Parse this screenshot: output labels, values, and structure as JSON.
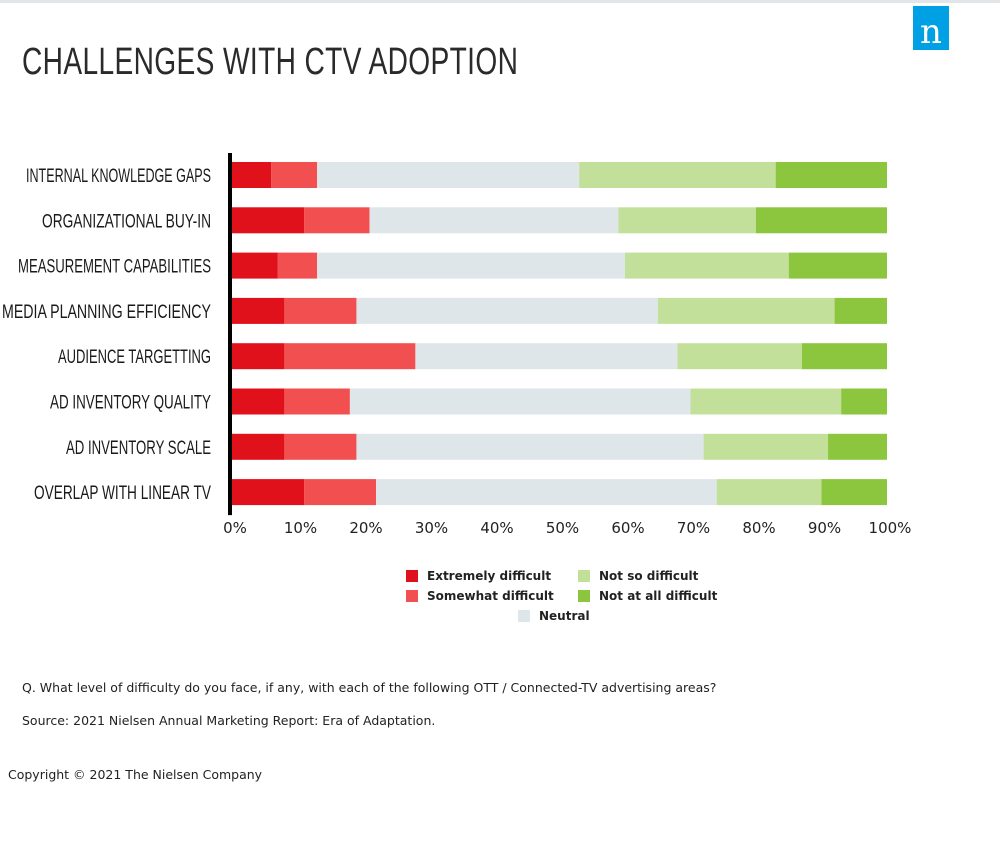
{
  "header": {
    "title": "CHALLENGES WITH CTV ADOPTION",
    "logo_letter": "n"
  },
  "colors": {
    "extremely": "#e0111b",
    "somewhat": "#f25050",
    "neutral": "#dfe6ea",
    "not_so": "#c3e09b",
    "not_at_all": "#8cc63f",
    "axis": "#000000"
  },
  "chart_data": {
    "type": "bar",
    "orientation": "horizontal",
    "stacked": true,
    "title": "CHALLENGES WITH CTV ADOPTION",
    "categories": [
      "INTERNAL KNOWLEDGE GAPS",
      "ORGANIZATIONAL BUY-IN",
      "MEASUREMENT CAPABILITIES",
      "MEDIA PLANNING  EFFICIENCY",
      "AUDIENCE TARGETTING",
      "AD INVENTORY QUALITY",
      "AD INVENTORY SCALE",
      "OVERLAP WITH LINEAR TV"
    ],
    "series": [
      {
        "name": "Extremely difficult",
        "color": "#e0111b",
        "values": [
          6,
          11,
          7,
          8,
          8,
          8,
          8,
          11
        ]
      },
      {
        "name": "Somewhat difficult",
        "color": "#f25050",
        "values": [
          7,
          10,
          6,
          11,
          20,
          10,
          11,
          11
        ]
      },
      {
        "name": "Neutral",
        "color": "#dfe6ea",
        "values": [
          40,
          38,
          47,
          46,
          40,
          52,
          53,
          52
        ]
      },
      {
        "name": "Not so difficult",
        "color": "#c3e09b",
        "values": [
          30,
          21,
          25,
          27,
          19,
          23,
          19,
          16
        ]
      },
      {
        "name": "Not at all difficult",
        "color": "#8cc63f",
        "values": [
          17,
          20,
          15,
          8,
          13,
          7,
          9,
          10
        ]
      }
    ],
    "x_ticks": [
      "0%",
      "10%",
      "20%",
      "30%",
      "40%",
      "50%",
      "60%",
      "70%",
      "80%",
      "90%",
      "100%"
    ],
    "xlim": [
      0,
      100
    ],
    "grid": false,
    "legend_position": "bottom"
  },
  "legend": {
    "items": [
      {
        "label": "Extremely difficult"
      },
      {
        "label": "Somewhat difficult"
      },
      {
        "label": "Not so difficult"
      },
      {
        "label": "Not at all difficult"
      },
      {
        "label": "Neutral"
      }
    ]
  },
  "notes": {
    "question": "Q. What level of difficulty do you face, if any, with each of the following OTT / Connected-TV advertising areas?",
    "source": "Source: 2021 Nielsen Annual Marketing Report: Era of Adaptation."
  },
  "footer": {
    "copyright": "Copyright © 2021 The Nielsen Company"
  }
}
